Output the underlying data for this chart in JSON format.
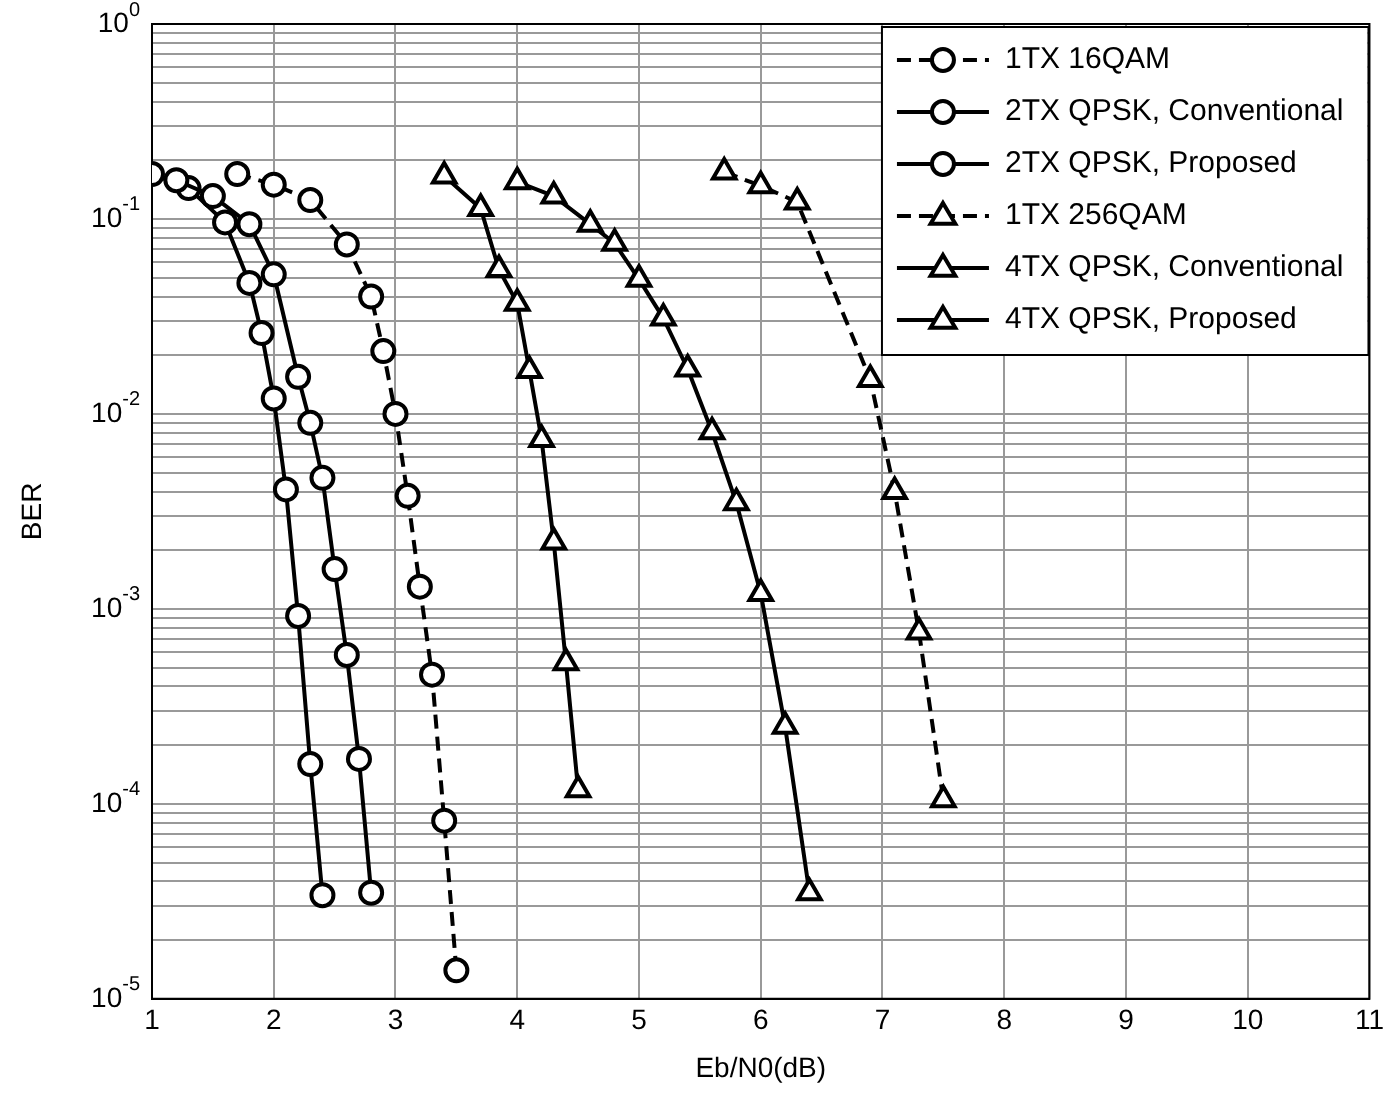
{
  "chart_data": {
    "type": "line",
    "xlabel": "Eb/N0(dB)",
    "ylabel": "BER",
    "log": "y",
    "grid": true,
    "legend": "top right",
    "xlim": [
      1,
      11
    ],
    "xticks": [
      1,
      2,
      3,
      4,
      5,
      6,
      7,
      8,
      9,
      10,
      11
    ],
    "ylim": [
      1e-05,
      1
    ],
    "yticks": [
      {
        "value": 1e-05,
        "label": "10$^{-5}$"
      },
      {
        "value": 2e-05,
        "label": null
      },
      {
        "value": 3e-05,
        "label": null
      },
      {
        "value": 4e-05,
        "label": null
      },
      {
        "value": 5e-05,
        "label": null
      },
      {
        "value": 6e-05,
        "label": null
      },
      {
        "value": 7e-05,
        "label": null
      },
      {
        "value": 8e-05,
        "label": null
      },
      {
        "value": 9e-05,
        "label": null
      },
      {
        "value": 0.0001,
        "label": "10$^{-4}$"
      },
      {
        "value": 0.0002,
        "label": null
      },
      {
        "value": 0.0003,
        "label": null
      },
      {
        "value": 0.0004,
        "label": null
      },
      {
        "value": 0.0005,
        "label": null
      },
      {
        "value": 0.0006,
        "label": null
      },
      {
        "value": 0.0007,
        "label": null
      },
      {
        "value": 0.0008,
        "label": null
      },
      {
        "value": 0.0009,
        "label": null
      },
      {
        "value": 0.001,
        "label": "10$^{-3}$"
      },
      {
        "value": 0.002,
        "label": null
      },
      {
        "value": 0.003,
        "label": null
      },
      {
        "value": 0.004,
        "label": null
      },
      {
        "value": 0.005,
        "label": null
      },
      {
        "value": 0.006,
        "label": null
      },
      {
        "value": 0.007,
        "label": null
      },
      {
        "value": 0.008,
        "label": null
      },
      {
        "value": 0.009,
        "label": null
      },
      {
        "value": 0.01,
        "label": "10$^{-2}$"
      },
      {
        "value": 0.02,
        "label": null
      },
      {
        "value": 0.03,
        "label": null
      },
      {
        "value": 0.04,
        "label": null
      },
      {
        "value": 0.05,
        "label": null
      },
      {
        "value": 0.06,
        "label": null
      },
      {
        "value": 0.07,
        "label": null
      },
      {
        "value": 0.08,
        "label": null
      },
      {
        "value": 0.09,
        "label": null
      },
      {
        "value": 0.1,
        "label": "10$^{-1}$"
      },
      {
        "value": 0.2,
        "label": null
      },
      {
        "value": 0.3,
        "label": null
      },
      {
        "value": 0.4,
        "label": null
      },
      {
        "value": 0.5,
        "label": null
      },
      {
        "value": 0.6,
        "label": null
      },
      {
        "value": 0.7,
        "label": null
      },
      {
        "value": 0.8,
        "label": null
      },
      {
        "value": 0.9,
        "label": null
      },
      {
        "value": 1,
        "label": "10$^{0}$"
      }
    ],
    "series": [
      {
        "name": "1TX 16QAM",
        "color": "#000000",
        "marker": "circle",
        "line_style": "dashed",
        "x": [
          1.7,
          2.0,
          2.3,
          2.6,
          2.8,
          2.9,
          3.0,
          3.1,
          3.2,
          3.3,
          3.4,
          3.5
        ],
        "values": [
          0.17,
          0.15,
          0.125,
          0.074,
          0.04,
          0.021,
          0.01,
          0.0038,
          0.0013,
          0.00046,
          8.2e-05,
          1.4e-05
        ]
      },
      {
        "name": "2TX QPSK, Conventional",
        "color": "#000000",
        "marker": "circle",
        "line_style": "solid",
        "x": [
          1.2,
          1.5,
          1.8,
          2.0,
          2.2,
          2.3,
          2.4,
          2.5,
          2.6,
          2.7,
          2.8
        ],
        "values": [
          0.158,
          0.131,
          0.094,
          0.052,
          0.0155,
          0.009,
          0.0047,
          0.0016,
          0.00058,
          0.00017,
          3.5e-05
        ]
      },
      {
        "name": "2TX QPSK, Proposed",
        "color": "#000000",
        "marker": "circle",
        "line_style": "solid",
        "x": [
          1.0,
          1.3,
          1.6,
          1.8,
          1.9,
          2.0,
          2.1,
          2.2,
          2.3,
          2.4
        ],
        "values": [
          0.17,
          0.144,
          0.096,
          0.047,
          0.026,
          0.012,
          0.0041,
          0.00092,
          0.00016,
          3.4e-05
        ]
      },
      {
        "name": "1TX 256QAM",
        "color": "#000000",
        "marker": "triangle",
        "line_style": "dashed",
        "x": [
          5.7,
          6.0,
          6.3,
          6.9,
          7.1,
          7.3,
          7.5
        ],
        "values": [
          0.174,
          0.148,
          0.122,
          0.015,
          0.004,
          0.00076,
          0.000105
        ]
      },
      {
        "name": "4TX QPSK, Conventional",
        "color": "#000000",
        "marker": "triangle",
        "line_style": "solid",
        "x": [
          4.0,
          4.3,
          4.6,
          4.8,
          5.0,
          5.2,
          5.4,
          5.6,
          5.8,
          6.0,
          6.2,
          6.4
        ],
        "values": [
          0.155,
          0.131,
          0.094,
          0.075,
          0.049,
          0.031,
          0.017,
          0.0081,
          0.0035,
          0.0012,
          0.00025,
          3.5e-05
        ]
      },
      {
        "name": "4TX QPSK, Proposed",
        "color": "#000000",
        "marker": "triangle",
        "line_style": "solid",
        "x": [
          3.4,
          3.7,
          3.85,
          4.0,
          4.1,
          4.2,
          4.3,
          4.4,
          4.5
        ],
        "values": [
          0.166,
          0.113,
          0.055,
          0.037,
          0.0167,
          0.0074,
          0.0022,
          0.00053,
          0.000118
        ]
      }
    ]
  }
}
